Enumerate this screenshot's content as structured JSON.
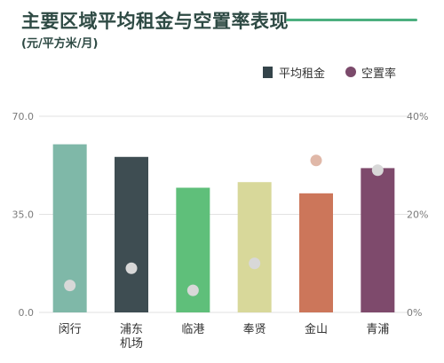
{
  "title": "主要区域平均租金与空置率表现",
  "unit": "(元/平方米/月)",
  "legend": {
    "rent_label": "平均租金",
    "vacancy_label": "空置率"
  },
  "colors": {
    "title": "#2e4a44",
    "accent_rule": "#4caf7f",
    "legend_rent": "#34444a",
    "legend_vacancy": "#7b4a6b",
    "dot": "#d8d8d8",
    "dot_highlight": "#e0b8a8"
  },
  "chart_data": {
    "type": "bar",
    "categories": [
      [
        "闵行"
      ],
      [
        "浦东",
        "机场"
      ],
      [
        "临港"
      ],
      [
        "奉贤"
      ],
      [
        "金山"
      ],
      [
        "青浦"
      ]
    ],
    "series": [
      {
        "name": "平均租金",
        "axis": "left",
        "values": [
          60.0,
          55.5,
          44.5,
          46.5,
          42.5,
          51.5
        ],
        "colors": [
          "#7fb8a8",
          "#3e4d52",
          "#5fbf7a",
          "#d8d89a",
          "#cc765a",
          "#7e4a6c"
        ]
      },
      {
        "name": "空置率",
        "axis": "right",
        "type": "scatter",
        "values": [
          5.5,
          9.0,
          4.5,
          10.0,
          31.0,
          29.0
        ],
        "colors": [
          "#d8d8d8",
          "#d8d8d8",
          "#d8d8d8",
          "#d8d8d8",
          "#e0b8a8",
          "#d8d8d8"
        ]
      }
    ],
    "left_axis": {
      "ticks": [
        "0.0",
        "35.0",
        "70.0"
      ],
      "min": 0,
      "max": 70
    },
    "right_axis": {
      "ticks": [
        "0%",
        "20%",
        "40%"
      ],
      "min": 0,
      "max": 40
    },
    "grid": true,
    "legend_position": "top-right"
  }
}
